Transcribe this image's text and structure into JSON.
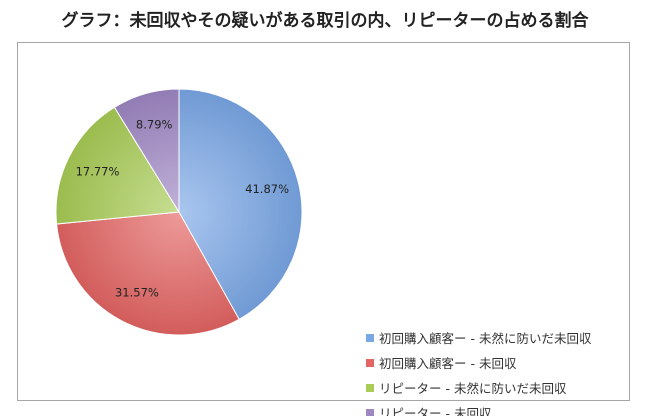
{
  "title": "グラフ：未回収やその疑いがある取引の内、リピーターの占める割合",
  "chart_data": {
    "type": "pie",
    "title": "グラフ：未回収やその疑いがある取引の内、リピーターの占める割合",
    "legend_position": "right",
    "slices": [
      {
        "name": "初回購入顧客ー - 未然に防いだ未回収",
        "value": 41.87,
        "label": "41.87%",
        "color": "#7aa7e6"
      },
      {
        "name": "初回購入顧客ー - 未回収",
        "value": 31.57,
        "label": "31.57%",
        "color": "#e46563"
      },
      {
        "name": "リピーター - 未然に防いだ未回収",
        "value": 17.77,
        "label": "17.77%",
        "color": "#a8cc55"
      },
      {
        "name": "リピーター - 未回収",
        "value": 8.79,
        "label": "8.79%",
        "color": "#9f87c4"
      }
    ]
  }
}
